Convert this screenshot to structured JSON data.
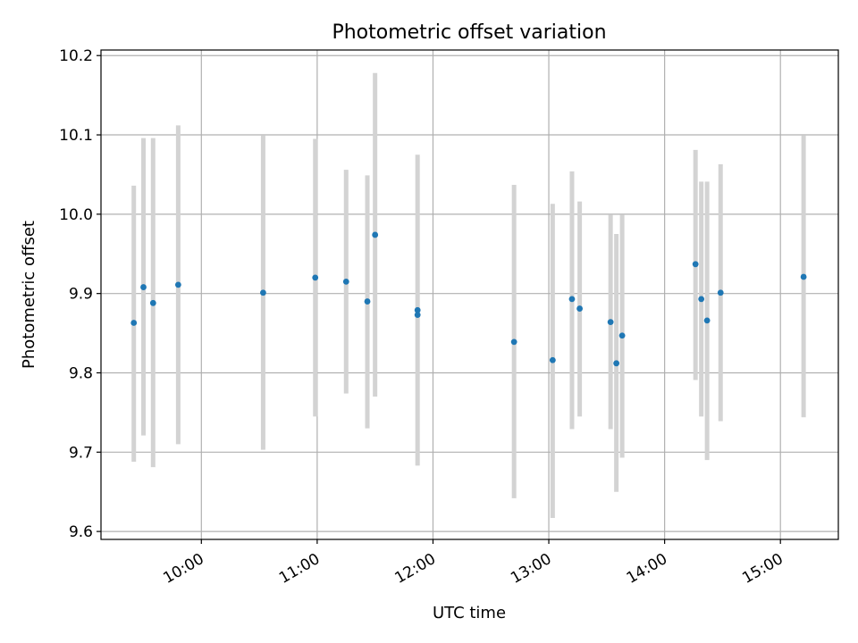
{
  "chart_data": {
    "type": "scatter",
    "title": "Photometric offset variation",
    "xlabel": "UTC time",
    "ylabel": "Photometric offset",
    "x_tick_labels": [
      "10:00",
      "11:00",
      "12:00",
      "13:00",
      "14:00",
      "15:00"
    ],
    "y_tick_labels": [
      "9.6",
      "9.7",
      "9.8",
      "9.9",
      "10.0",
      "10.1",
      "10.2"
    ],
    "x_ticks": [
      "10:00",
      "11:00",
      "12:00",
      "13:00",
      "14:00",
      "15:00"
    ],
    "y_ticks": [
      9.6,
      9.7,
      9.8,
      9.9,
      10.0,
      10.1,
      10.2
    ],
    "xlim": [
      "09:08",
      "15:30"
    ],
    "ylim": [
      9.59,
      10.207
    ],
    "grid": true,
    "colors": {
      "points": "#1f77b4",
      "error_bars": "#d3d3d3",
      "grid": "#b0b0b0"
    },
    "points": [
      {
        "x": "09:25",
        "y": 9.863,
        "yerr_low": 9.688,
        "yerr_high": 10.036
      },
      {
        "x": "09:30",
        "y": 9.908,
        "yerr_low": 9.721,
        "yerr_high": 10.096
      },
      {
        "x": "09:35",
        "y": 9.888,
        "yerr_low": 9.681,
        "yerr_high": 10.096
      },
      {
        "x": "09:48",
        "y": 9.911,
        "yerr_low": 9.71,
        "yerr_high": 10.112
      },
      {
        "x": "10:32",
        "y": 9.901,
        "yerr_low": 9.703,
        "yerr_high": 10.099
      },
      {
        "x": "10:59",
        "y": 9.92,
        "yerr_low": 9.745,
        "yerr_high": 10.095
      },
      {
        "x": "11:15",
        "y": 9.915,
        "yerr_low": 9.774,
        "yerr_high": 10.056
      },
      {
        "x": "11:26",
        "y": 9.89,
        "yerr_low": 9.73,
        "yerr_high": 10.049
      },
      {
        "x": "11:30",
        "y": 9.974,
        "yerr_low": 9.77,
        "yerr_high": 10.178
      },
      {
        "x": "11:52",
        "y": 9.879,
        "yerr_low": 9.683,
        "yerr_high": 10.075
      },
      {
        "x": "11:52",
        "y": 9.873
      },
      {
        "x": "12:42",
        "y": 9.839,
        "yerr_low": 9.642,
        "yerr_high": 10.037
      },
      {
        "x": "13:02",
        "y": 9.816,
        "yerr_low": 9.617,
        "yerr_high": 10.013
      },
      {
        "x": "13:12",
        "y": 9.893,
        "yerr_low": 9.729,
        "yerr_high": 10.054
      },
      {
        "x": "13:16",
        "y": 9.881,
        "yerr_low": 9.745,
        "yerr_high": 10.016
      },
      {
        "x": "13:32",
        "y": 9.864,
        "yerr_low": 9.729,
        "yerr_high": 9.999
      },
      {
        "x": "13:35",
        "y": 9.812,
        "yerr_low": 9.65,
        "yerr_high": 9.975
      },
      {
        "x": "13:38",
        "y": 9.847,
        "yerr_low": 9.693,
        "yerr_high": 9.999
      },
      {
        "x": "14:16",
        "y": 9.937,
        "yerr_low": 9.791,
        "yerr_high": 10.081
      },
      {
        "x": "14:19",
        "y": 9.893,
        "yerr_low": 9.745,
        "yerr_high": 10.041
      },
      {
        "x": "14:22",
        "y": 9.866,
        "yerr_low": 9.69,
        "yerr_high": 10.041
      },
      {
        "x": "14:29",
        "y": 9.901,
        "yerr_low": 9.739,
        "yerr_high": 10.063
      },
      {
        "x": "15:12",
        "y": 9.921,
        "yerr_low": 9.744,
        "yerr_high": 10.099
      }
    ]
  }
}
